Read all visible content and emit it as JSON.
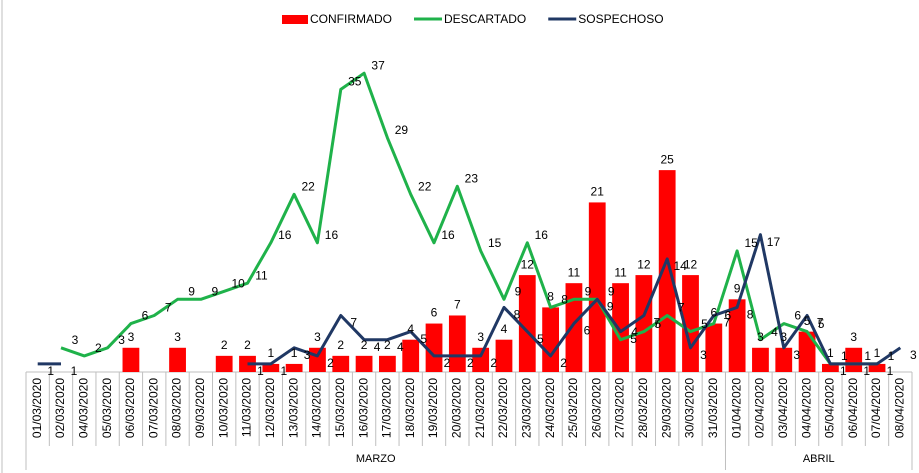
{
  "chart_data": {
    "type": "bar_line",
    "categories": [
      "01/03/2020",
      "02/03/2020",
      "04/03/2020",
      "05/03/2020",
      "06/03/2020",
      "07/03/2020",
      "08/03/2020",
      "09/03/2020",
      "10/03/2020",
      "11/03/2020",
      "12/03/2020",
      "13/03/2020",
      "14/03/2020",
      "15/03/2020",
      "16/03/2020",
      "17/03/2020",
      "18/03/2020",
      "19/03/2020",
      "20/03/2020",
      "21/03/2020",
      "22/03/2020",
      "23/03/2020",
      "24/03/2020",
      "25/03/2020",
      "26/03/2020",
      "27/03/2020",
      "28/03/2020",
      "29/03/2020",
      "30/03/2020",
      "31/03/2020",
      "01/04/2020",
      "02/04/2020",
      "03/04/2020",
      "04/04/2020",
      "05/04/2020",
      "06/04/2020",
      "07/04/2020",
      "08/04/2020"
    ],
    "groups": [
      {
        "label": "MARZO",
        "count": 30
      },
      {
        "label": "ABRIL",
        "count": 8
      }
    ],
    "ylim": [
      0,
      40
    ],
    "series": [
      {
        "name": "CONFIRMADO",
        "kind": "bar",
        "color": "#ff0000",
        "values": [
          null,
          null,
          null,
          null,
          3,
          null,
          3,
          null,
          2,
          2,
          1,
          1,
          3,
          2,
          2,
          2,
          4,
          6,
          7,
          3,
          4,
          12,
          8,
          11,
          21,
          11,
          12,
          25,
          12,
          6,
          9,
          3,
          3,
          5,
          1,
          3,
          1,
          null
        ]
      },
      {
        "name": "DESCARTADO",
        "kind": "line",
        "color": "#1fb24a",
        "values": [
          null,
          3,
          2,
          3,
          6,
          7,
          9,
          9,
          10,
          11,
          16,
          22,
          16,
          35,
          37,
          29,
          22,
          16,
          23,
          15,
          9,
          16,
          8,
          9,
          9,
          4,
          5,
          7,
          5,
          6,
          15,
          4,
          6,
          5,
          1,
          1,
          1,
          null
        ]
      },
      {
        "name": "SOSPECHOSO",
        "kind": "line",
        "color": "#203864",
        "values": [
          1,
          1,
          null,
          null,
          null,
          null,
          null,
          null,
          null,
          1,
          1,
          3,
          2,
          7,
          4,
          4,
          5,
          2,
          2,
          2,
          8,
          5,
          2,
          6,
          9,
          5,
          7,
          14,
          3,
          7,
          8,
          17,
          3,
          7,
          1,
          1,
          1,
          3
        ]
      }
    ]
  }
}
